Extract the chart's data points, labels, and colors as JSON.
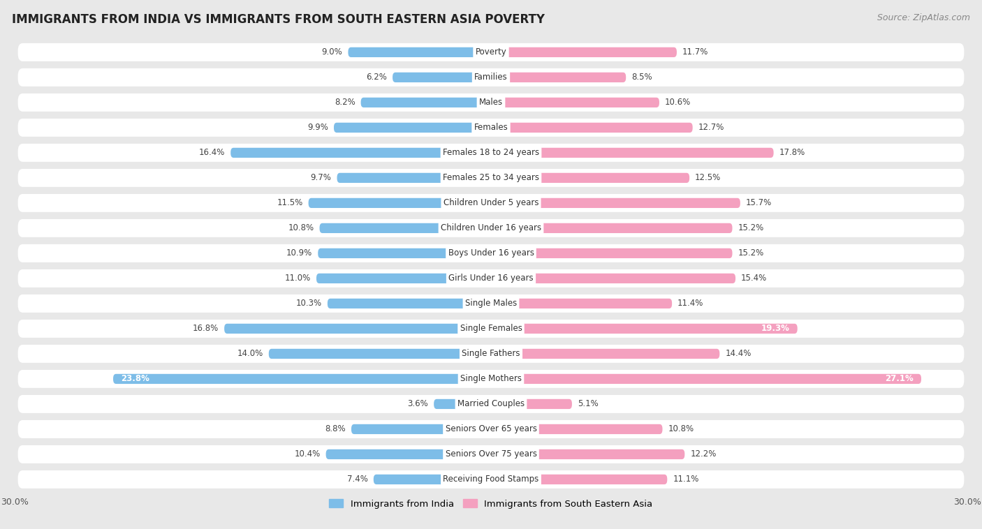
{
  "title": "IMMIGRANTS FROM INDIA VS IMMIGRANTS FROM SOUTH EASTERN ASIA POVERTY",
  "source": "Source: ZipAtlas.com",
  "categories": [
    "Poverty",
    "Families",
    "Males",
    "Females",
    "Females 18 to 24 years",
    "Females 25 to 34 years",
    "Children Under 5 years",
    "Children Under 16 years",
    "Boys Under 16 years",
    "Girls Under 16 years",
    "Single Males",
    "Single Females",
    "Single Fathers",
    "Single Mothers",
    "Married Couples",
    "Seniors Over 65 years",
    "Seniors Over 75 years",
    "Receiving Food Stamps"
  ],
  "india_values": [
    9.0,
    6.2,
    8.2,
    9.9,
    16.4,
    9.7,
    11.5,
    10.8,
    10.9,
    11.0,
    10.3,
    16.8,
    14.0,
    23.8,
    3.6,
    8.8,
    10.4,
    7.4
  ],
  "sea_values": [
    11.7,
    8.5,
    10.6,
    12.7,
    17.8,
    12.5,
    15.7,
    15.2,
    15.2,
    15.4,
    11.4,
    19.3,
    14.4,
    27.1,
    5.1,
    10.8,
    12.2,
    11.1
  ],
  "india_color": "#7dbde8",
  "sea_color": "#f4a0bf",
  "india_label": "Immigrants from India",
  "sea_label": "Immigrants from South Eastern Asia",
  "x_max": 30.0,
  "background_color": "#e8e8e8",
  "row_color": "#ffffff",
  "title_fontsize": 12,
  "source_fontsize": 9,
  "label_fontsize": 8.5,
  "value_fontsize": 8.5
}
